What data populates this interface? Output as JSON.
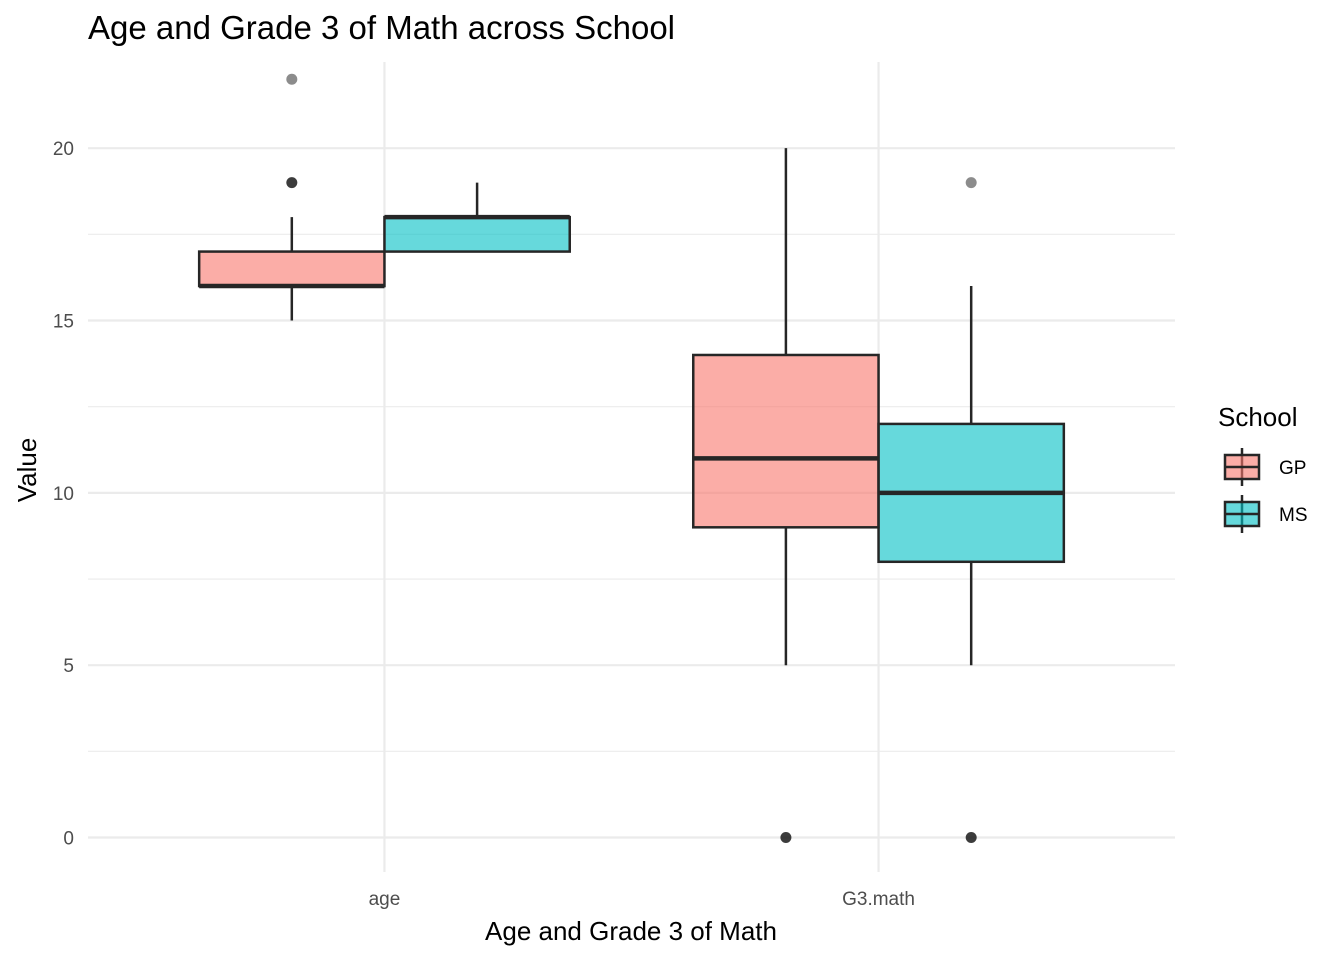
{
  "chart_data": {
    "type": "boxplot",
    "title": "Age and Grade 3 of Math across School",
    "xlabel": "Age and Grade 3 of Math",
    "ylabel": "Value",
    "ylim": [
      -1.0,
      22.5
    ],
    "yticks": [
      0,
      5,
      10,
      15,
      20
    ],
    "grid": true,
    "categories": [
      "age",
      "G3.math"
    ],
    "legend": {
      "title": "School",
      "position": "right",
      "entries": [
        "GP",
        "MS"
      ]
    },
    "series": [
      {
        "name": "GP",
        "color": "#F8766D",
        "boxes": [
          {
            "category": "age",
            "min": 15,
            "q1": 16,
            "median": 16,
            "q3": 17,
            "max": 18,
            "outliers": [
              19,
              22
            ]
          },
          {
            "category": "G3.math",
            "min": 5,
            "q1": 9,
            "median": 11,
            "q3": 14,
            "max": 20,
            "outliers": [
              0
            ]
          }
        ]
      },
      {
        "name": "MS",
        "color": "#00BFC4",
        "boxes": [
          {
            "category": "age",
            "min": 17,
            "q1": 17,
            "median": 18,
            "q3": 18,
            "max": 19,
            "outliers": []
          },
          {
            "category": "G3.math",
            "min": 5,
            "q1": 8,
            "median": 10,
            "q3": 12,
            "max": 16,
            "outliers": [
              0,
              19
            ]
          }
        ]
      }
    ]
  }
}
